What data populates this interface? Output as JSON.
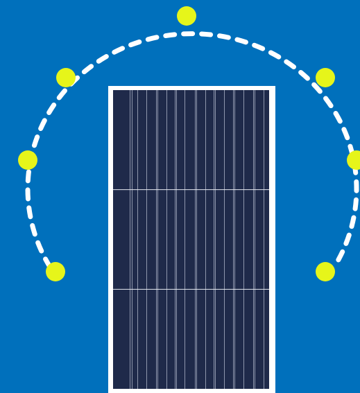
{
  "colors": {
    "background": "#0070bc",
    "arc": "#ffffff",
    "dot": "#e6f51a",
    "panel_frame": "#ffffff",
    "panel_cells": "#1f2a4a",
    "cell_lines": "#8f97ad",
    "row_divider": "#e8ebf2"
  },
  "panel": {
    "rows": 3
  },
  "arc": {
    "dots": 7,
    "style": "dashed"
  }
}
